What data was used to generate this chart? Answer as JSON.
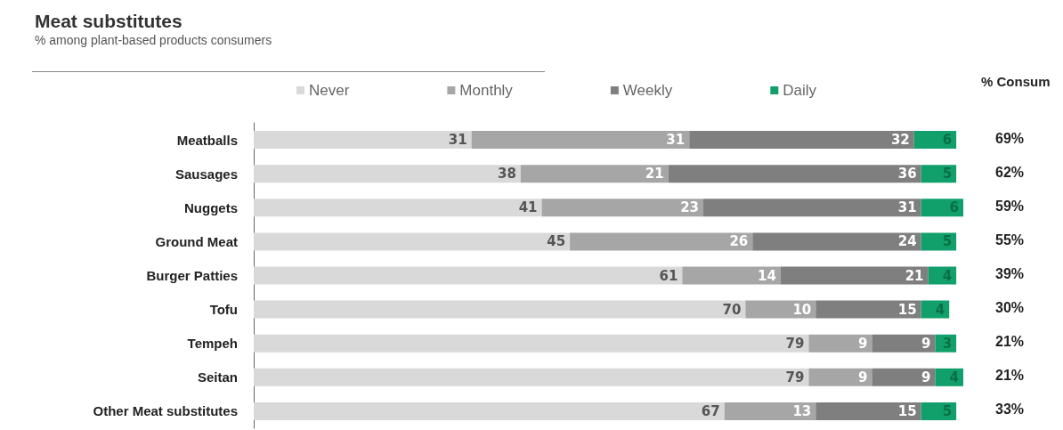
{
  "chart_data": {
    "type": "bar",
    "orientation": "horizontal",
    "stacked": true,
    "data_labels": true,
    "legend": "top",
    "title": "Meat substitutes",
    "subtitle": "% among plant-based products consumers",
    "categories": [
      "Meatballs",
      "Sausages",
      "Nuggets",
      "Ground Meat",
      "Burger Patties",
      "Tofu",
      "Tempeh",
      "Seitan",
      "Other Meat substitutes"
    ],
    "series": [
      {
        "name": "Never",
        "color": "#d9d9d9",
        "values": [
          31,
          38,
          41,
          45,
          61,
          70,
          79,
          79,
          67
        ]
      },
      {
        "name": "Monthly",
        "color": "#a6a6a6",
        "values": [
          31,
          21,
          23,
          26,
          14,
          10,
          9,
          9,
          13
        ]
      },
      {
        "name": "Weekly",
        "color": "#7f7f7f",
        "values": [
          32,
          36,
          31,
          24,
          21,
          15,
          9,
          9,
          15
        ]
      },
      {
        "name": "Daily",
        "color": "#11a06c",
        "values": [
          6,
          5,
          6,
          5,
          4,
          4,
          3,
          4,
          5
        ]
      }
    ],
    "annotations": [
      "% Consum",
      "69%",
      "62%",
      "59%",
      "55%",
      "39%",
      "30%",
      "21%",
      "21%",
      "33%"
    ]
  }
}
